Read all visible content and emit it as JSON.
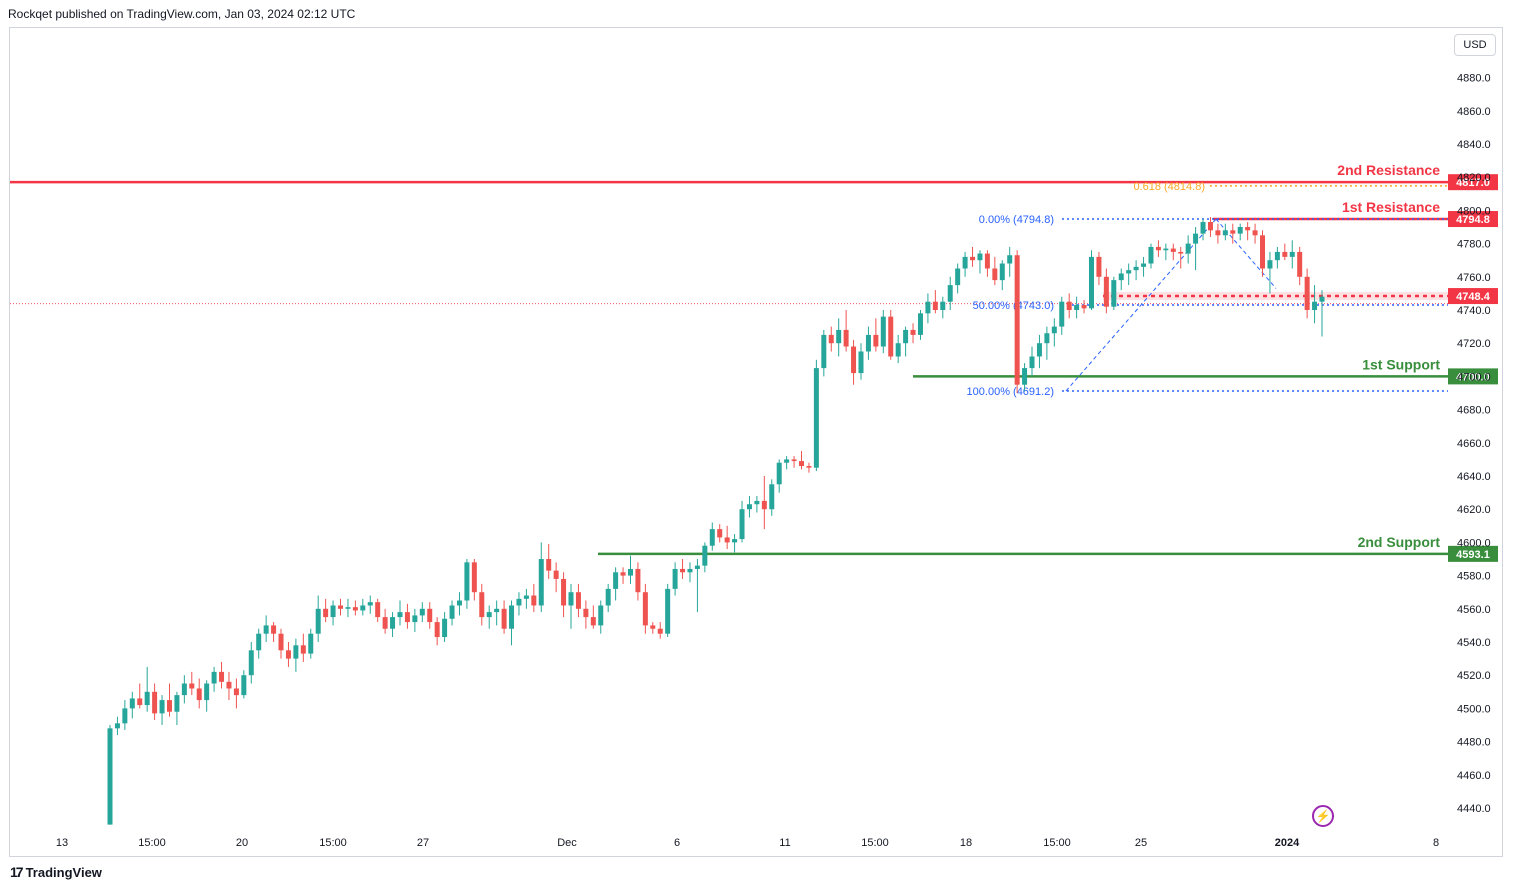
{
  "header": {
    "published": "Rockqet published on TradingView.com, Jan 03, 2024 02:12 UTC"
  },
  "currency_button": "USD",
  "footer": {
    "brand": "TradingView",
    "logo_icon": "tradingview-logo-icon"
  },
  "colors": {
    "up": "#26a69a",
    "down": "#ef5350",
    "resistance": "#f23645",
    "support": "#388e3c",
    "fib": "#2962ff",
    "fib_gold": "#f9a825",
    "current": "#f23645"
  },
  "chart_data": {
    "type": "candlestick",
    "y_axis": {
      "range": [
        4430,
        4910
      ],
      "ticks": [
        "4440.0",
        "4460.0",
        "4480.0",
        "4500.0",
        "4520.0",
        "4540.0",
        "4560.0",
        "4580.0",
        "4600.0",
        "4620.0",
        "4640.0",
        "4660.0",
        "4680.0",
        "4700.0",
        "4720.0",
        "4740.0",
        "4760.0",
        "4780.0",
        "4800.0",
        "4820.0",
        "4840.0",
        "4860.0",
        "4880.0"
      ]
    },
    "x_axis": {
      "ticks": [
        "13",
        "15:00",
        "20",
        "15:00",
        "27",
        "Dec",
        "6",
        "11",
        "15:00",
        "18",
        "15:00",
        "25",
        "2024",
        "8"
      ],
      "bold_tick": "2024"
    },
    "levels": [
      {
        "name": "2nd Resistance",
        "value": 4817.0,
        "tag": "4817.0",
        "kind": "resistance"
      },
      {
        "name": "1st Resistance",
        "value": 4794.8,
        "tag": "4794.8",
        "kind": "resistance"
      },
      {
        "name": "1st Support",
        "value": 4700.0,
        "tag": "4700.0",
        "kind": "support"
      },
      {
        "name": "2nd Support",
        "value": 4593.1,
        "tag": "4593.1",
        "kind": "support"
      }
    ],
    "current_price": {
      "value": 4748.4,
      "tag": "4748.4"
    },
    "fib": [
      {
        "label": "0.618 (4814.8)",
        "value": 4814.8
      },
      {
        "label": "0.00% (4794.8)",
        "value": 4794.8
      },
      {
        "label": "50.00% (4743.0)",
        "value": 4743.0
      },
      {
        "label": "100.00% (4691.2)",
        "value": 4691.2
      }
    ],
    "candles": [
      [
        4430,
        4490,
        4430,
        4488
      ],
      [
        4488,
        4495,
        4484,
        4491
      ],
      [
        4491,
        4505,
        4487,
        4500
      ],
      [
        4500,
        4510,
        4494,
        4506
      ],
      [
        4506,
        4515,
        4500,
        4502
      ],
      [
        4502,
        4525,
        4498,
        4510
      ],
      [
        4510,
        4515,
        4493,
        4497
      ],
      [
        4497,
        4508,
        4490,
        4505
      ],
      [
        4505,
        4515,
        4495,
        4498
      ],
      [
        4498,
        4510,
        4490,
        4508
      ],
      [
        4508,
        4520,
        4503,
        4515
      ],
      [
        4515,
        4522,
        4508,
        4512
      ],
      [
        4512,
        4518,
        4500,
        4505
      ],
      [
        4505,
        4517,
        4498,
        4515
      ],
      [
        4515,
        4525,
        4510,
        4522
      ],
      [
        4522,
        4528,
        4512,
        4516
      ],
      [
        4516,
        4522,
        4505,
        4512
      ],
      [
        4512,
        4518,
        4500,
        4508
      ],
      [
        4508,
        4523,
        4506,
        4520
      ],
      [
        4520,
        4540,
        4515,
        4535
      ],
      [
        4535,
        4548,
        4530,
        4545
      ],
      [
        4545,
        4556,
        4540,
        4550
      ],
      [
        4550,
        4552,
        4540,
        4545
      ],
      [
        4545,
        4548,
        4530,
        4535
      ],
      [
        4535,
        4540,
        4525,
        4530
      ],
      [
        4530,
        4542,
        4522,
        4538
      ],
      [
        4538,
        4545,
        4528,
        4533
      ],
      [
        4533,
        4548,
        4530,
        4545
      ],
      [
        4545,
        4568,
        4540,
        4560
      ],
      [
        4560,
        4566,
        4552,
        4555
      ],
      [
        4555,
        4565,
        4550,
        4562
      ],
      [
        4562,
        4566,
        4556,
        4560
      ],
      [
        4560,
        4566,
        4555,
        4561
      ],
      [
        4561,
        4565,
        4556,
        4559
      ],
      [
        4559,
        4566,
        4556,
        4562
      ],
      [
        4562,
        4568,
        4557,
        4564
      ],
      [
        4564,
        4566,
        4552,
        4555
      ],
      [
        4555,
        4560,
        4545,
        4548
      ],
      [
        4548,
        4558,
        4543,
        4555
      ],
      [
        4555,
        4565,
        4550,
        4558
      ],
      [
        4558,
        4563,
        4548,
        4552
      ],
      [
        4552,
        4560,
        4546,
        4556
      ],
      [
        4556,
        4564,
        4552,
        4560
      ],
      [
        4560,
        4564,
        4548,
        4552
      ],
      [
        4552,
        4555,
        4538,
        4543
      ],
      [
        4543,
        4558,
        4540,
        4554
      ],
      [
        4554,
        4565,
        4550,
        4562
      ],
      [
        4562,
        4570,
        4556,
        4565
      ],
      [
        4565,
        4590,
        4560,
        4588
      ],
      [
        4588,
        4590,
        4565,
        4570
      ],
      [
        4570,
        4575,
        4550,
        4555
      ],
      [
        4555,
        4562,
        4548,
        4558
      ],
      [
        4558,
        4565,
        4550,
        4560
      ],
      [
        4560,
        4565,
        4545,
        4548
      ],
      [
        4548,
        4565,
        4538,
        4562
      ],
      [
        4562,
        4570,
        4556,
        4566
      ],
      [
        4566,
        4572,
        4560,
        4568
      ],
      [
        4568,
        4575,
        4558,
        4562
      ],
      [
        4562,
        4600,
        4558,
        4590
      ],
      [
        4590,
        4599,
        4578,
        4583
      ],
      [
        4583,
        4588,
        4570,
        4578
      ],
      [
        4578,
        4582,
        4555,
        4562
      ],
      [
        4562,
        4575,
        4548,
        4570
      ],
      [
        4570,
        4575,
        4555,
        4560
      ],
      [
        4560,
        4565,
        4548,
        4555
      ],
      [
        4555,
        4562,
        4548,
        4550
      ],
      [
        4550,
        4565,
        4545,
        4562
      ],
      [
        4562,
        4575,
        4558,
        4572
      ],
      [
        4572,
        4585,
        4565,
        4582
      ],
      [
        4582,
        4585,
        4575,
        4580
      ],
      [
        4580,
        4592,
        4575,
        4584
      ],
      [
        4584,
        4588,
        4565,
        4570
      ],
      [
        4570,
        4575,
        4545,
        4550
      ],
      [
        4550,
        4552,
        4545,
        4548
      ],
      [
        4548,
        4552,
        4542,
        4545
      ],
      [
        4545,
        4575,
        4543,
        4572
      ],
      [
        4572,
        4588,
        4568,
        4584
      ],
      [
        4584,
        4590,
        4578,
        4582
      ],
      [
        4582,
        4588,
        4576,
        4584
      ],
      [
        4584,
        4590,
        4558,
        4586
      ],
      [
        4586,
        4600,
        4582,
        4598
      ],
      [
        4598,
        4612,
        4595,
        4608
      ],
      [
        4608,
        4611,
        4600,
        4603
      ],
      [
        4603,
        4610,
        4596,
        4600
      ],
      [
        4600,
        4605,
        4594,
        4602
      ],
      [
        4602,
        4625,
        4600,
        4620
      ],
      [
        4620,
        4628,
        4615,
        4623
      ],
      [
        4623,
        4628,
        4618,
        4625
      ],
      [
        4625,
        4640,
        4608,
        4620
      ],
      [
        4620,
        4638,
        4616,
        4635
      ],
      [
        4635,
        4650,
        4630,
        4648
      ],
      [
        4648,
        4652,
        4644,
        4650
      ],
      [
        4650,
        4652,
        4645,
        4649
      ],
      [
        4649,
        4655,
        4644,
        4646
      ],
      [
        4646,
        4648,
        4642,
        4645
      ],
      [
        4645,
        4710,
        4643,
        4705
      ],
      [
        4705,
        4728,
        4700,
        4725
      ],
      [
        4725,
        4730,
        4715,
        4720
      ],
      [
        4720,
        4735,
        4712,
        4728
      ],
      [
        4728,
        4740,
        4715,
        4718
      ],
      [
        4718,
        4722,
        4695,
        4702
      ],
      [
        4702,
        4720,
        4698,
        4715
      ],
      [
        4715,
        4730,
        4710,
        4725
      ],
      [
        4725,
        4735,
        4715,
        4718
      ],
      [
        4718,
        4740,
        4714,
        4736
      ],
      [
        4736,
        4740,
        4710,
        4712
      ],
      [
        4712,
        4725,
        4708,
        4720
      ],
      [
        4720,
        4730,
        4712,
        4728
      ],
      [
        4728,
        4732,
        4720,
        4725
      ],
      [
        4725,
        4740,
        4722,
        4738
      ],
      [
        4738,
        4750,
        4732,
        4745
      ],
      [
        4745,
        4752,
        4738,
        4740
      ],
      [
        4740,
        4748,
        4735,
        4745
      ],
      [
        4745,
        4760,
        4740,
        4755
      ],
      [
        4755,
        4768,
        4750,
        4765
      ],
      [
        4765,
        4775,
        4760,
        4772
      ],
      [
        4772,
        4778,
        4766,
        4770
      ],
      [
        4770,
        4776,
        4762,
        4774
      ],
      [
        4774,
        4776,
        4760,
        4765
      ],
      [
        4765,
        4772,
        4755,
        4758
      ],
      [
        4758,
        4770,
        4752,
        4768
      ],
      [
        4768,
        4778,
        4760,
        4773
      ],
      [
        4773,
        4776,
        4690,
        4695
      ],
      [
        4695,
        4708,
        4691,
        4705
      ],
      [
        4705,
        4718,
        4700,
        4712
      ],
      [
        4712,
        4725,
        4705,
        4720
      ],
      [
        4720,
        4730,
        4710,
        4726
      ],
      [
        4726,
        4735,
        4718,
        4730
      ],
      [
        4730,
        4748,
        4725,
        4745
      ],
      [
        4745,
        4750,
        4735,
        4740
      ],
      [
        4740,
        4748,
        4735,
        4743
      ],
      [
        4743,
        4746,
        4738,
        4741
      ],
      [
        4741,
        4776,
        4740,
        4772
      ],
      [
        4772,
        4775,
        4755,
        4760
      ],
      [
        4760,
        4765,
        4738,
        4742
      ],
      [
        4742,
        4760,
        4740,
        4758
      ],
      [
        4758,
        4765,
        4752,
        4762
      ],
      [
        4762,
        4768,
        4755,
        4764
      ],
      [
        4764,
        4770,
        4758,
        4766
      ],
      [
        4766,
        4772,
        4760,
        4768
      ],
      [
        4768,
        4780,
        4765,
        4778
      ],
      [
        4778,
        4782,
        4772,
        4776
      ],
      [
        4776,
        4780,
        4770,
        4777
      ],
      [
        4777,
        4780,
        4770,
        4775
      ],
      [
        4775,
        4778,
        4765,
        4774
      ],
      [
        4774,
        4785,
        4768,
        4780
      ],
      [
        4780,
        4790,
        4764,
        4786
      ],
      [
        4786,
        4795,
        4782,
        4793
      ],
      [
        4793,
        4796,
        4784,
        4788
      ],
      [
        4788,
        4792,
        4780,
        4785
      ],
      [
        4785,
        4792,
        4782,
        4788
      ],
      [
        4788,
        4792,
        4780,
        4786
      ],
      [
        4786,
        4792,
        4782,
        4790
      ],
      [
        4790,
        4793,
        4782,
        4788
      ],
      [
        4788,
        4792,
        4780,
        4785
      ],
      [
        4785,
        4788,
        4760,
        4765
      ],
      [
        4765,
        4775,
        4750,
        4770
      ],
      [
        4770,
        4778,
        4765,
        4775
      ],
      [
        4775,
        4780,
        4770,
        4772
      ],
      [
        4772,
        4782,
        4765,
        4775
      ],
      [
        4775,
        4778,
        4755,
        4760
      ],
      [
        4760,
        4765,
        4735,
        4740
      ],
      [
        4740,
        4755,
        4732,
        4745
      ],
      [
        4745,
        4752,
        4724,
        4748
      ]
    ]
  }
}
